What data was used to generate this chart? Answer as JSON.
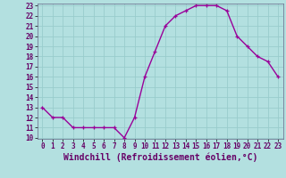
{
  "x": [
    0,
    1,
    2,
    3,
    4,
    5,
    6,
    7,
    8,
    9,
    10,
    11,
    12,
    13,
    14,
    15,
    16,
    17,
    18,
    19,
    20,
    21,
    22,
    23
  ],
  "y": [
    13,
    12,
    12,
    11,
    11,
    11,
    11,
    11,
    10,
    12,
    16,
    18.5,
    21,
    22,
    22.5,
    23,
    23,
    23,
    22.5,
    20,
    19,
    18,
    17.5,
    16
  ],
  "line_color": "#990099",
  "marker": "+",
  "marker_color": "#990099",
  "bg_color": "#b3e0e0",
  "grid_color": "#99cccc",
  "xlabel": "Windchill (Refroidissement éolien,°C)",
  "ylim": [
    10,
    23
  ],
  "xlim": [
    -0.5,
    23.5
  ],
  "yticks": [
    10,
    11,
    12,
    13,
    14,
    15,
    16,
    17,
    18,
    19,
    20,
    21,
    22,
    23
  ],
  "xticks": [
    0,
    1,
    2,
    3,
    4,
    5,
    6,
    7,
    8,
    9,
    10,
    11,
    12,
    13,
    14,
    15,
    16,
    17,
    18,
    19,
    20,
    21,
    22,
    23
  ],
  "tick_fontsize": 5.5,
  "xlabel_fontsize": 7,
  "line_width": 1.0,
  "marker_size": 3.5
}
